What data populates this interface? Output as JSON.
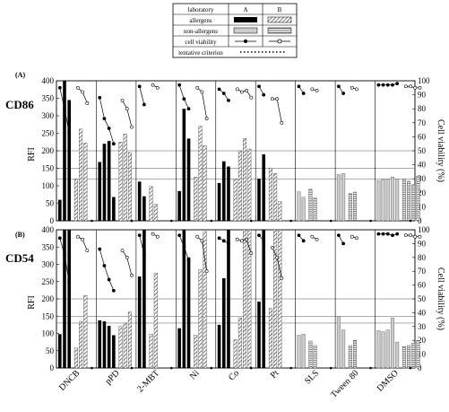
{
  "legend": {
    "header": [
      "laboratory",
      "A",
      "B"
    ],
    "rows": [
      {
        "label": "allergens"
      },
      {
        "label": "non-allergens"
      },
      {
        "label": "cell viability"
      },
      {
        "label": "tentative criterion"
      }
    ]
  },
  "axes": {
    "y_left_label": "RFI",
    "y_right_label": "Cell viability (%)"
  },
  "categories": [
    "DNCB",
    "pPD",
    "2-MBT",
    "Ni",
    "Co",
    "Pt",
    "SLS",
    "Tween 80",
    "DMSO"
  ],
  "colors": {
    "allergen_a": "#000000",
    "allergen_b_hatch": "#555555",
    "non_allergen_a": "#cccccc",
    "non_allergen_b_hatch": "#777777"
  },
  "chart_data": [
    {
      "type": "bar",
      "panel": "(A)",
      "marker": "CD86",
      "ylim": [
        0,
        400
      ],
      "y2lim": [
        0,
        100
      ],
      "yticks": [
        0,
        50,
        100,
        150,
        200,
        250,
        300,
        350,
        400
      ],
      "y2ticks": [
        0,
        10,
        20,
        30,
        40,
        50,
        60,
        70,
        80,
        90,
        100
      ],
      "criterion_lines": [
        120,
        150
      ],
      "extra_lines": [
        200
      ],
      "groups": [
        {
          "category": "DNCB",
          "class": "allergen",
          "a": [
            60,
            400,
            345
          ],
          "b": [
            120,
            262,
            222
          ],
          "via_a": [
            95,
            80,
            63
          ],
          "via_b": [
            95,
            92,
            84
          ]
        },
        {
          "category": "pPD",
          "class": "allergen",
          "a": [
            168,
            220,
            228,
            68
          ],
          "b": [
            225,
            248,
            195
          ],
          "via_a": [
            88,
            73,
            66,
            55
          ],
          "via_b": [
            86,
            80,
            67
          ]
        },
        {
          "category": "2-MBT",
          "class": "allergen",
          "a": [
            112,
            70
          ],
          "b": [
            98,
            47
          ],
          "via_a": [
            96,
            83
          ],
          "via_b": [
            97,
            95
          ]
        },
        {
          "category": "Ni",
          "class": "allergen",
          "a": [
            85,
            320,
            235
          ],
          "b": [
            125,
            270,
            215
          ],
          "via_a": [
            97,
            87,
            80
          ],
          "via_b": [
            95,
            92,
            73
          ]
        },
        {
          "category": "Co",
          "class": "allergen",
          "a": [
            108,
            170,
            155
          ],
          "b": [
            120,
            200,
            235,
            205
          ],
          "via_a": [
            94,
            91,
            86
          ],
          "via_b": [
            94,
            92,
            93,
            88
          ]
        },
        {
          "category": "Pt",
          "class": "allergen",
          "a": [
            120,
            190
          ],
          "b": [
            150,
            135,
            55
          ],
          "via_a": [
            96,
            90
          ],
          "via_b": [
            87,
            87,
            70
          ]
        },
        {
          "category": "SLS",
          "class": "non-allergen",
          "a": [
            83,
            67
          ],
          "b": [
            90,
            65
          ],
          "via_a": [
            96,
            91
          ],
          "via_b": [
            94,
            93
          ]
        },
        {
          "category": "Tween 80",
          "class": "non-allergen",
          "a": [
            132,
            135
          ],
          "b": [
            78,
            82
          ],
          "via_a": [
            96,
            91
          ],
          "via_b": [
            95,
            94
          ]
        },
        {
          "category": "DMSO",
          "class": "non-allergen",
          "a": [
            115,
            118,
            120,
            125,
            120
          ],
          "b": [
            118,
            113,
            103,
            128
          ],
          "via_a": [
            97,
            97,
            97,
            97,
            98
          ],
          "via_b": [
            96,
            96,
            95,
            95
          ]
        }
      ]
    },
    {
      "type": "bar",
      "panel": "(B)",
      "marker": "CD54",
      "ylim": [
        0,
        400
      ],
      "y2lim": [
        0,
        100
      ],
      "yticks": [
        0,
        50,
        100,
        150,
        200,
        250,
        300,
        350,
        400
      ],
      "y2ticks": [
        0,
        10,
        20,
        30,
        40,
        50,
        60,
        70,
        80,
        90,
        100
      ],
      "criterion_lines": [
        130,
        150
      ],
      "extra_lines": [
        200
      ],
      "groups": [
        {
          "category": "DNCB",
          "class": "allergen",
          "a": [
            98,
            400,
            400
          ],
          "b": [
            58,
            135,
            210
          ],
          "via_a": [
            94,
            82,
            62
          ],
          "via_b": [
            95,
            93,
            85
          ]
        },
        {
          "category": "pPD",
          "class": "allergen",
          "a": [
            138,
            135,
            122,
            95
          ],
          "b": [
            120,
            130,
            162
          ],
          "via_a": [
            86,
            74,
            64,
            56
          ],
          "via_b": [
            85,
            80,
            67
          ]
        },
        {
          "category": "2-MBT",
          "class": "allergen",
          "a": [
            265,
            400
          ],
          "b": [
            98,
            275
          ],
          "via_a": [
            96,
            82
          ],
          "via_b": [
            97,
            95
          ]
        },
        {
          "category": "Ni",
          "class": "allergen",
          "a": [
            115,
            400,
            320
          ],
          "b": [
            95,
            285,
            395
          ],
          "via_a": [
            96,
            88,
            78
          ],
          "via_b": [
            95,
            92,
            70
          ]
        },
        {
          "category": "Co",
          "class": "allergen",
          "a": [
            125,
            260,
            400
          ],
          "b": [
            82,
            145,
            400,
            400
          ],
          "via_a": [
            94,
            92,
            90
          ],
          "via_b": [
            93,
            92,
            93,
            83
          ]
        },
        {
          "category": "Pt",
          "class": "allergen",
          "a": [
            192,
            400
          ],
          "b": [
            172,
            400,
            400
          ],
          "via_a": [
            96,
            92
          ],
          "via_b": [
            87,
            80,
            65
          ]
        },
        {
          "category": "SLS",
          "class": "non-allergen",
          "a": [
            95,
            98
          ],
          "b": [
            78,
            65
          ],
          "via_a": [
            96,
            92
          ],
          "via_b": [
            95,
            93
          ]
        },
        {
          "category": "Tween 80",
          "class": "non-allergen",
          "a": [
            150,
            110
          ],
          "b": [
            65,
            80
          ],
          "via_a": [
            96,
            90
          ],
          "via_b": [
            95,
            94
          ]
        },
        {
          "category": "DMSO",
          "class": "non-allergen",
          "a": [
            108,
            105,
            110,
            145,
            75
          ],
          "b": [
            62,
            65,
            72,
            80
          ],
          "via_a": [
            97,
            97,
            97,
            96,
            97
          ],
          "via_b": [
            96,
            96,
            95,
            95
          ]
        }
      ]
    }
  ]
}
